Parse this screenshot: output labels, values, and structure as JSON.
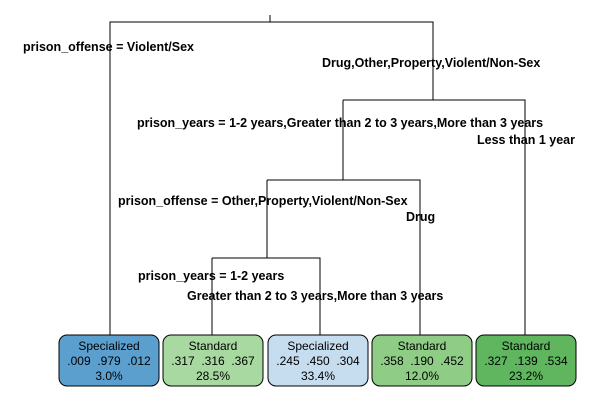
{
  "splits": {
    "root_left": "prison_offense = Violent/Sex",
    "root_right": "Drug,Other,Property,Violent/Non-Sex",
    "years_left": "prison_years = 1-2 years,Greater than 2 to 3 years,More than 3 years",
    "years_right": "Less than 1 year",
    "offense2_left": "prison_offense = Other,Property,Violent/Non-Sex",
    "offense2_right": "Drug",
    "years2_left": "prison_years = 1-2 years",
    "years2_right": "Greater than 2 to 3 years,More than 3 years"
  },
  "leaves": [
    {
      "class": "Specialized",
      "probs": ".009  .979  .012",
      "pct": "3.0%",
      "color": "#5b9fcf"
    },
    {
      "class": "Standard",
      "probs": ".317  .316  .367",
      "pct": "28.5%",
      "color": "#a8d9a0"
    },
    {
      "class": "Specialized",
      "probs": ".245  .450  .304",
      "pct": "33.4%",
      "color": "#c6dcef"
    },
    {
      "class": "Standard",
      "probs": ".358  .190  .452",
      "pct": "12.0%",
      "color": "#8fcd87"
    },
    {
      "class": "Standard",
      "probs": ".327  .139  .534",
      "pct": "23.2%",
      "color": "#5fb65f"
    }
  ]
}
